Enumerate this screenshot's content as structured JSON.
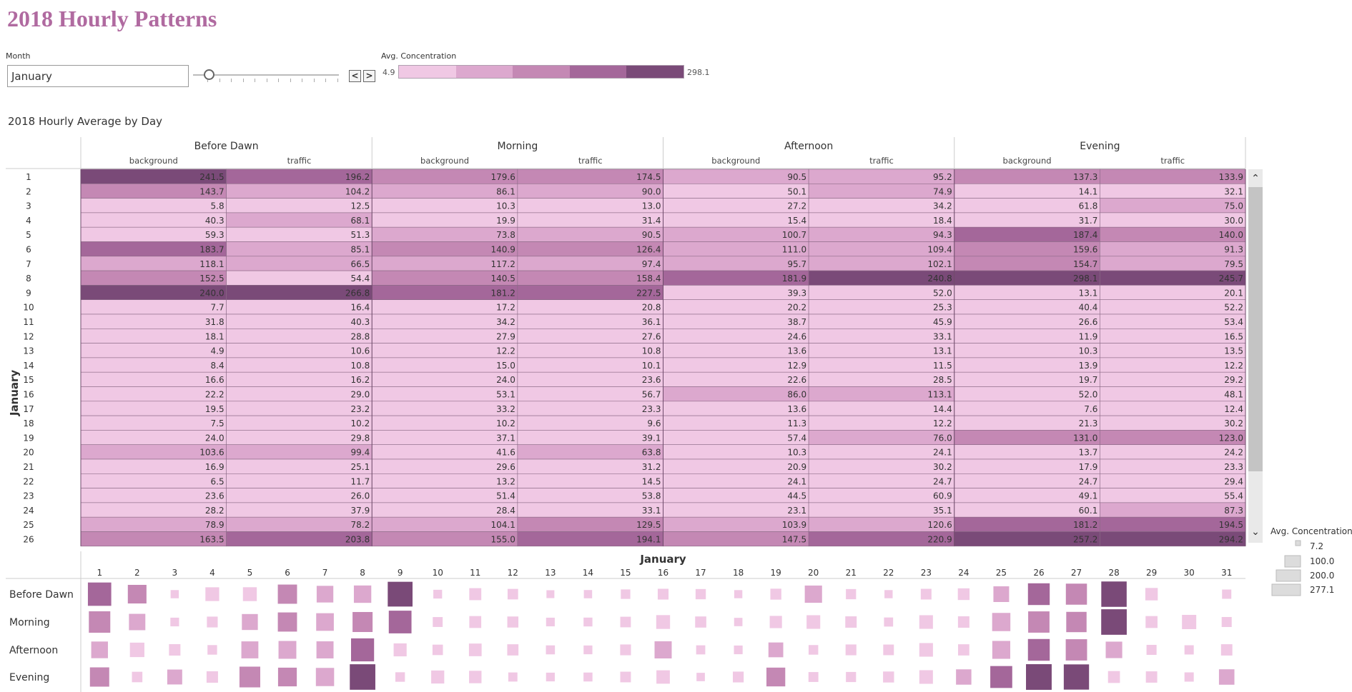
{
  "title": "2018 Hourly Patterns",
  "filter": {
    "label": "Month",
    "value": "January"
  },
  "nav": {
    "prev": "<",
    "next": ">"
  },
  "legend": {
    "label": "Avg. Concentration",
    "min": "4.9",
    "max": "298.1",
    "colors": [
      "#f0c8e4",
      "#dca8ce",
      "#c488b4",
      "#a4679a",
      "#7a4a78"
    ]
  },
  "table_title": "2018 Hourly Average by Day",
  "size_legend": {
    "label": "Avg. Concentration",
    "items": [
      "7.2",
      "100.0",
      "200.0",
      "277.1"
    ]
  },
  "colors": {
    "c1": "#f0c8e4",
    "c2": "#dca8ce",
    "c3": "#c488b4",
    "c4": "#a4679a",
    "c5": "#7a4a78"
  },
  "chart_data": [
    {
      "type": "heatmap",
      "title": "2018 Hourly Average by Day",
      "row_axis_label": "January",
      "periods": [
        "Before Dawn",
        "Morning",
        "Afternoon",
        "Evening"
      ],
      "sources": [
        "background",
        "traffic"
      ],
      "days": [
        "1",
        "2",
        "3",
        "4",
        "5",
        "6",
        "7",
        "8",
        "9",
        "10",
        "11",
        "12",
        "13",
        "14",
        "15",
        "16",
        "17",
        "18",
        "19",
        "20",
        "21",
        "22",
        "23",
        "24",
        "25",
        "26"
      ],
      "values": [
        [
          241.5,
          196.2,
          179.6,
          174.5,
          90.5,
          95.2,
          137.3,
          133.9
        ],
        [
          143.7,
          104.2,
          86.1,
          90.0,
          50.1,
          74.9,
          14.1,
          32.1
        ],
        [
          5.8,
          12.5,
          10.3,
          13.0,
          27.2,
          34.2,
          61.8,
          75.0
        ],
        [
          40.3,
          68.1,
          19.9,
          31.4,
          15.4,
          18.4,
          31.7,
          30.0
        ],
        [
          59.3,
          51.3,
          73.8,
          90.5,
          100.7,
          94.3,
          187.4,
          140.0
        ],
        [
          183.7,
          85.1,
          140.9,
          126.4,
          111.0,
          109.4,
          159.6,
          91.3
        ],
        [
          118.1,
          66.5,
          117.2,
          97.4,
          95.7,
          102.1,
          154.7,
          79.5
        ],
        [
          152.5,
          54.4,
          140.5,
          158.4,
          181.9,
          240.8,
          298.1,
          245.7
        ],
        [
          240.0,
          266.8,
          181.2,
          227.5,
          39.3,
          52.0,
          13.1,
          20.1
        ],
        [
          7.7,
          16.4,
          17.2,
          20.8,
          20.2,
          25.3,
          40.4,
          52.2
        ],
        [
          31.8,
          40.3,
          34.2,
          36.1,
          38.7,
          45.9,
          26.6,
          53.4
        ],
        [
          18.1,
          28.8,
          27.9,
          27.6,
          24.6,
          33.1,
          11.9,
          16.5
        ],
        [
          4.9,
          10.6,
          12.2,
          10.8,
          13.6,
          13.1,
          10.3,
          13.5
        ],
        [
          8.4,
          10.8,
          15.0,
          10.1,
          12.9,
          11.5,
          13.9,
          12.2
        ],
        [
          16.6,
          16.2,
          24.0,
          23.6,
          22.6,
          28.5,
          19.7,
          29.2
        ],
        [
          22.2,
          29.0,
          53.1,
          56.7,
          86.0,
          113.1,
          52.0,
          48.1
        ],
        [
          19.5,
          23.2,
          33.2,
          23.3,
          13.6,
          14.4,
          7.6,
          12.4
        ],
        [
          7.5,
          10.2,
          10.2,
          9.6,
          11.3,
          12.2,
          21.3,
          30.2
        ],
        [
          24.0,
          29.8,
          37.1,
          39.1,
          57.4,
          76.0,
          131.0,
          123.0
        ],
        [
          103.6,
          99.4,
          41.6,
          63.8,
          10.3,
          24.1,
          13.7,
          24.2
        ],
        [
          16.9,
          25.1,
          29.6,
          31.2,
          20.9,
          30.2,
          17.9,
          23.3
        ],
        [
          6.5,
          11.7,
          13.2,
          14.5,
          24.1,
          24.7,
          24.7,
          29.4
        ],
        [
          23.6,
          26.0,
          51.4,
          53.8,
          44.5,
          60.9,
          49.1,
          55.4
        ],
        [
          28.2,
          37.9,
          28.4,
          33.1,
          23.1,
          35.1,
          60.1,
          87.3
        ],
        [
          78.9,
          78.2,
          104.1,
          129.5,
          103.9,
          120.6,
          181.2,
          194.5
        ],
        [
          163.5,
          203.8,
          155.0,
          194.1,
          147.5,
          220.9,
          257.2,
          294.2
        ]
      ],
      "color_range": [
        4.9,
        298.1
      ]
    },
    {
      "type": "scatter",
      "title": "January",
      "x": [
        "1",
        "2",
        "3",
        "4",
        "5",
        "6",
        "7",
        "8",
        "9",
        "10",
        "11",
        "12",
        "13",
        "14",
        "15",
        "16",
        "17",
        "18",
        "19",
        "20",
        "21",
        "22",
        "23",
        "24",
        "25",
        "26",
        "27",
        "28",
        "29",
        "30",
        "31"
      ],
      "rows": [
        "Before Dawn",
        "Morning",
        "Afternoon",
        "Evening"
      ],
      "values": [
        [
          218.9,
          123.9,
          9.2,
          54.2,
          55.3,
          134.4,
          92.3,
          103.5,
          253.4,
          12.1,
          36.1,
          23.5,
          7.8,
          9.6,
          16.4,
          25.6,
          21.4,
          8.9,
          26.9,
          101.5,
          21.0,
          9.1,
          24.8,
          33.1,
          78.6,
          183.7,
          170.0,
          268.0,
          40.0,
          0,
          15.0
        ],
        [
          177.1,
          88.1,
          11.7,
          25.7,
          82.2,
          133.7,
          107.3,
          149.5,
          204.4,
          19.0,
          35.2,
          27.8,
          11.5,
          12.6,
          23.8,
          54.9,
          28.3,
          9.9,
          38.1,
          52.7,
          30.4,
          13.9,
          52.6,
          30.8,
          116.8,
          174.6,
          155.0,
          272.0,
          35.0,
          60.0,
          20.0
        ],
        [
          92.9,
          62.5,
          30.7,
          16.9,
          97.5,
          110.2,
          98.9,
          211.4,
          45.7,
          22.8,
          42.3,
          28.9,
          13.4,
          12.2,
          25.6,
          99.6,
          14.0,
          11.8,
          66.7,
          17.2,
          25.6,
          24.4,
          52.7,
          29.1,
          112.3,
          184.2,
          175.0,
          90.0,
          20.0,
          15.0,
          30.0
        ],
        [
          135.6,
          23.1,
          68.4,
          30.9,
          163.7,
          125.5,
          117.1,
          271.9,
          16.6,
          46.3,
          40.0,
          14.2,
          11.9,
          13.1,
          24.5,
          50.1,
          10.0,
          25.8,
          127.0,
          19.0,
          20.6,
          27.1,
          52.3,
          73.7,
          187.9,
          275.7,
          265.0,
          35.0,
          30.0,
          15.0,
          75.0
        ]
      ],
      "size_legend": [
        7.2,
        100.0,
        200.0,
        277.1
      ]
    }
  ]
}
